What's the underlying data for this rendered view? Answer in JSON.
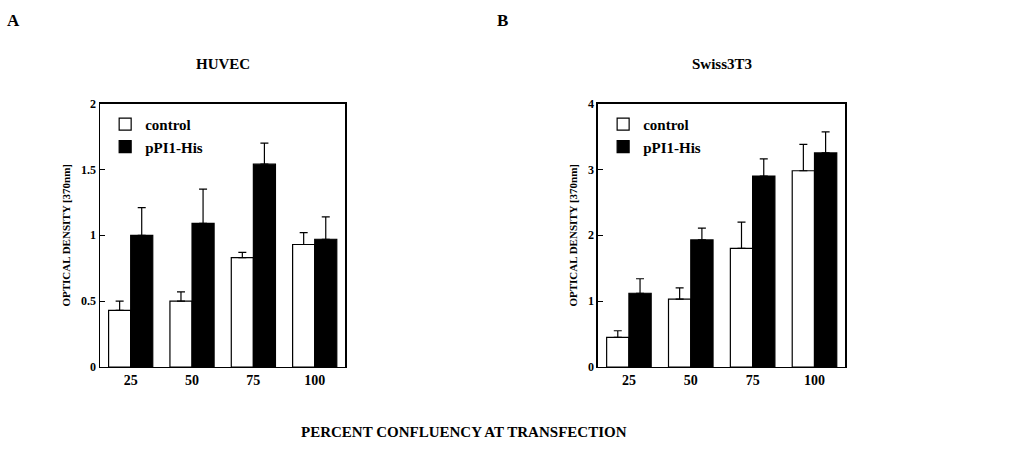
{
  "xlabel": "PERCENT CONFLUENCY AT TRANSFECTION",
  "chart_data": [
    {
      "type": "bar",
      "label": "A",
      "title": "HUVEC",
      "ylabel": "OPTICAL DENSITY [370nm]",
      "categories": [
        "25",
        "50",
        "75",
        "100"
      ],
      "series": [
        {
          "name": "control",
          "color": "#ffffff",
          "values": [
            0.43,
            0.5,
            0.83,
            0.93
          ],
          "errors": [
            0.07,
            0.07,
            0.04,
            0.09
          ]
        },
        {
          "name": "pPI1-His",
          "color": "#000000",
          "values": [
            1.0,
            1.09,
            1.54,
            0.97
          ],
          "errors": [
            0.21,
            0.26,
            0.16,
            0.17
          ]
        }
      ],
      "ylim": [
        0,
        2
      ],
      "yticks": [
        0,
        0.5,
        1,
        1.5,
        2
      ],
      "legend": "upper left",
      "grid": false
    },
    {
      "type": "bar",
      "label": "B",
      "title": "Swiss3T3",
      "ylabel": "OPTICAL DENSITY [370nm]",
      "categories": [
        "25",
        "50",
        "75",
        "100"
      ],
      "series": [
        {
          "name": "control",
          "color": "#ffffff",
          "values": [
            0.45,
            1.03,
            1.8,
            2.98
          ],
          "errors": [
            0.1,
            0.17,
            0.4,
            0.4
          ]
        },
        {
          "name": "pPI1-His",
          "color": "#000000",
          "values": [
            1.12,
            1.93,
            2.9,
            3.25
          ],
          "errors": [
            0.22,
            0.18,
            0.26,
            0.32
          ]
        }
      ],
      "ylim": [
        0,
        4
      ],
      "yticks": [
        0,
        1,
        2,
        3,
        4
      ],
      "legend": "upper left",
      "grid": false
    }
  ]
}
